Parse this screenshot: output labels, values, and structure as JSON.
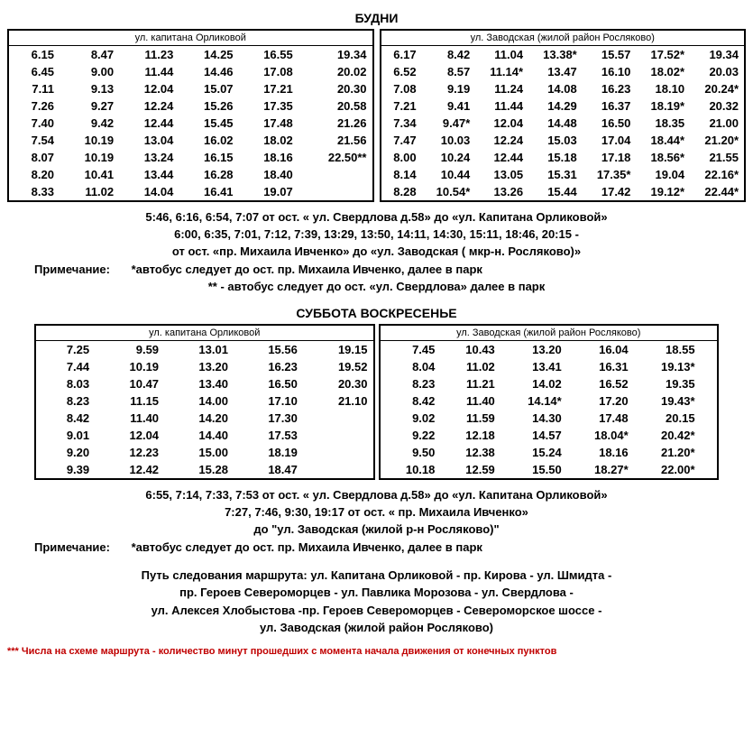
{
  "weekday": {
    "title": "БУДНИ",
    "left": {
      "header": "ул. капитана Орликовой",
      "rows": [
        [
          "6.15",
          "8.47",
          "11.23",
          "14.25",
          "16.55",
          "19.34"
        ],
        [
          "6.45",
          "9.00",
          "11.44",
          "14.46",
          "17.08",
          "20.02"
        ],
        [
          "7.11",
          "9.13",
          "12.04",
          "15.07",
          "17.21",
          "20.30"
        ],
        [
          "7.26",
          "9.27",
          "12.24",
          "15.26",
          "17.35",
          "20.58"
        ],
        [
          "7.40",
          "9.42",
          "12.44",
          "15.45",
          "17.48",
          "21.26"
        ],
        [
          "7.54",
          "10.19",
          "13.04",
          "16.02",
          "18.02",
          "21.56"
        ],
        [
          "8.07",
          "10.19",
          "13.24",
          "16.15",
          "18.16",
          "22.50**"
        ],
        [
          "8.20",
          "10.41",
          "13.44",
          "16.28",
          "18.40",
          ""
        ],
        [
          "8.33",
          "11.02",
          "14.04",
          "16.41",
          "19.07",
          ""
        ]
      ]
    },
    "right": {
      "header": "ул. Заводская (жилой район Росляково)",
      "rows": [
        [
          "6.17",
          "8.42",
          "11.04",
          "13.38*",
          "15.57",
          "17.52*",
          "19.34"
        ],
        [
          "6.52",
          "8.57",
          "11.14*",
          "13.47",
          "16.10",
          "18.02*",
          "20.03"
        ],
        [
          "7.08",
          "9.19",
          "11.24",
          "14.08",
          "16.23",
          "18.10",
          "20.24*"
        ],
        [
          "7.21",
          "9.41",
          "11.44",
          "14.29",
          "16.37",
          "18.19*",
          "20.32"
        ],
        [
          "7.34",
          "9.47*",
          "12.04",
          "14.48",
          "16.50",
          "18.35",
          "21.00"
        ],
        [
          "7.47",
          "10.03",
          "12.24",
          "15.03",
          "17.04",
          "18.44*",
          "21.20*"
        ],
        [
          "8.00",
          "10.24",
          "12.44",
          "15.18",
          "17.18",
          "18.56*",
          "21.55"
        ],
        [
          "8.14",
          "10.44",
          "13.05",
          "15.31",
          "17.35*",
          "19.04",
          "22.16*"
        ],
        [
          "8.28",
          "10.54*",
          "13.26",
          "15.44",
          "17.42",
          "19.12*",
          "22.44*"
        ]
      ]
    },
    "notes": [
      "5:46, 6:16, 6:54, 7:07 от ост. « ул. Свердлова д.58» до «ул. Капитана Орликовой»",
      "6:00, 6:35, 7:01, 7:12, 7:39, 13:29, 13:50, 14:11, 14:30, 15:11, 18:46, 20:15 -",
      "от  ост. «пр. Михаила Ивченко» до «ул. Заводская ( мкр-н. Росляково)»"
    ],
    "remark_label": "Примечание:",
    "remark1": "*автобус следует до ост. пр. Михаила Ивченко, далее в парк",
    "remark2": "** - автобус следует до ост. «ул. Свердлова» далее в парк"
  },
  "weekend": {
    "title": "СУББОТА  ВОСКРЕСЕНЬЕ",
    "left": {
      "header": "ул. капитана Орликовой",
      "rows": [
        [
          "7.25",
          "9.59",
          "13.01",
          "15.56",
          "19.15"
        ],
        [
          "7.44",
          "10.19",
          "13.20",
          "16.23",
          "19.52"
        ],
        [
          "8.03",
          "10.47",
          "13.40",
          "16.50",
          "20.30"
        ],
        [
          "8.23",
          "11.15",
          "14.00",
          "17.10",
          "21.10"
        ],
        [
          "8.42",
          "11.40",
          "14.20",
          "17.30",
          ""
        ],
        [
          "9.01",
          "12.04",
          "14.40",
          "17.53",
          ""
        ],
        [
          "9.20",
          "12.23",
          "15.00",
          "18.19",
          ""
        ],
        [
          "9.39",
          "12.42",
          "15.28",
          "18.47",
          ""
        ]
      ]
    },
    "right": {
      "header": "ул. Заводская (жилой район Росляково)",
      "rows": [
        [
          "7.45",
          "10.43",
          "13.20",
          "16.04",
          "18.55",
          ""
        ],
        [
          "8.04",
          "11.02",
          "13.41",
          "16.31",
          "19.13*",
          ""
        ],
        [
          "8.23",
          "11.21",
          "14.02",
          "16.52",
          "19.35",
          ""
        ],
        [
          "8.42",
          "11.40",
          "14.14*",
          "17.20",
          "19.43*",
          ""
        ],
        [
          "9.02",
          "11.59",
          "14.30",
          "17.48",
          "20.15",
          ""
        ],
        [
          "9.22",
          "12.18",
          "14.57",
          "18.04*",
          "20.42*",
          ""
        ],
        [
          "9.50",
          "12.38",
          "15.24",
          "18.16",
          "21.20*",
          ""
        ],
        [
          "10.18",
          "12.59",
          "15.50",
          "18.27*",
          "22.00*",
          ""
        ]
      ]
    },
    "notes": [
      "6:55, 7:14, 7:33, 7:53 от ост. « ул. Свердлова д.58» до «ул. Капитана Орликовой»",
      "7:27, 7:46,  9:30, 19:17 от ост. « пр. Михаила Ивченко»",
      "до \"ул. Заводская (жилой р-н Росляково)\""
    ],
    "remark_label": "Примечание:",
    "remark1": "*автобус следует до ост. пр. Михаила Ивченко, далее в парк"
  },
  "route": [
    "Путь следования маршрута: ул. Капитана Орликовой - пр. Кирова - ул. Шмидта -",
    "пр. Героев Североморцев - ул. Павлика Морозова - ул. Свердлова -",
    "ул. Алексея Хлобыстова -пр. Героев Североморцев - Североморское шоссе -",
    "ул. Заводская (жилой район Росляково)"
  ],
  "red_note": "*** Числа на схеме маршрута - количество минут прошедших с момента начала движения от конечных пунктов"
}
